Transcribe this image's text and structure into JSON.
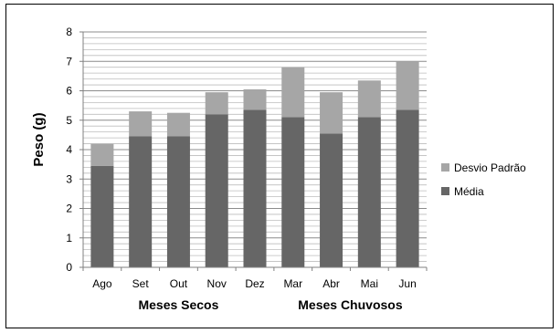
{
  "chart_data": {
    "type": "bar",
    "stacked": true,
    "categories": [
      "Ago",
      "Set",
      "Out",
      "Nov",
      "Dez",
      "Mar",
      "Abr",
      "Mai",
      "Jun"
    ],
    "series": [
      {
        "name": "Média",
        "values": [
          3.45,
          4.45,
          4.45,
          5.2,
          5.35,
          5.1,
          4.55,
          5.1,
          5.35
        ],
        "color": "#666666"
      },
      {
        "name": "Desvio Padrão",
        "values": [
          0.75,
          0.85,
          0.8,
          0.75,
          0.7,
          1.7,
          1.4,
          1.25,
          1.65
        ],
        "color": "#a6a6a6"
      }
    ],
    "ylabel": "Peso (g)",
    "xlabel": "",
    "ylim": [
      0,
      8
    ],
    "yticks": [
      0,
      1,
      2,
      3,
      4,
      5,
      6,
      7,
      8
    ],
    "minor_gridlines": true,
    "legend_position": "right",
    "group_labels": [
      {
        "label": "Meses Secos",
        "categories": [
          "Ago",
          "Set",
          "Out",
          "Nov",
          "Dez"
        ]
      },
      {
        "label": "Meses Chuvosos",
        "categories": [
          "Mar",
          "Abr",
          "Mai",
          "Jun"
        ]
      }
    ]
  }
}
